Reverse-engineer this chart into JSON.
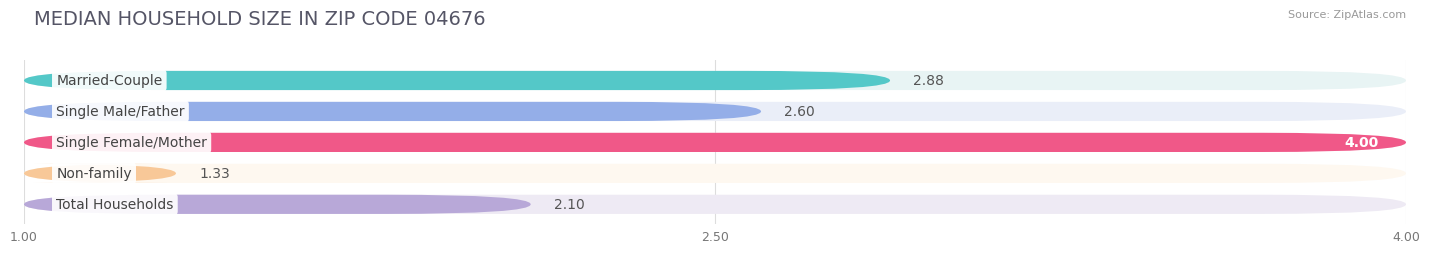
{
  "title": "MEDIAN HOUSEHOLD SIZE IN ZIP CODE 04676",
  "source": "Source: ZipAtlas.com",
  "categories": [
    "Married-Couple",
    "Single Male/Father",
    "Single Female/Mother",
    "Non-family",
    "Total Households"
  ],
  "values": [
    2.88,
    2.6,
    4.0,
    1.33,
    2.1
  ],
  "bar_colors": [
    "#54c8c8",
    "#94aee8",
    "#f05888",
    "#f8c898",
    "#b8a8d8"
  ],
  "bar_bg_colors": [
    "#e8f4f4",
    "#eaeef8",
    "#fdeef4",
    "#fef8f0",
    "#eeeaf4"
  ],
  "value_inside": [
    false,
    false,
    true,
    false,
    false
  ],
  "xlim": [
    1.0,
    4.0
  ],
  "xticks": [
    1.0,
    2.5,
    4.0
  ],
  "xtick_labels": [
    "1.00",
    "2.50",
    "4.00"
  ],
  "title_fontsize": 14,
  "label_fontsize": 10,
  "value_fontsize": 10,
  "background_color": "#ffffff"
}
